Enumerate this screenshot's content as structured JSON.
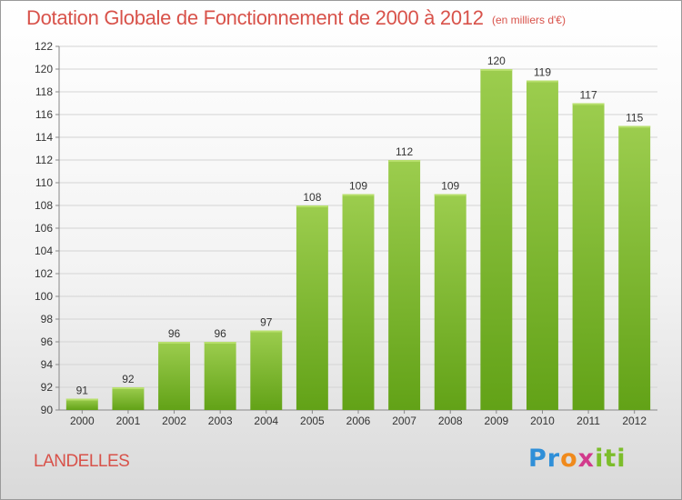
{
  "title": "Dotation Globale de Fonctionnement de 2000 à 2012",
  "subtitle": "(en milliers d'€)",
  "commune": "LANDELLES",
  "logo": {
    "part1": "Pr",
    "part2": "o",
    "part3": "x",
    "part4": "iti"
  },
  "colors": {
    "bar_top": "#9ccd4e",
    "bar_bottom": "#62a217",
    "title": "#d8524a",
    "grid": "#d4d4d4"
  },
  "chart_data": {
    "type": "bar",
    "categories": [
      "2000",
      "2001",
      "2002",
      "2003",
      "2004",
      "2005",
      "2006",
      "2007",
      "2008",
      "2009",
      "2010",
      "2011",
      "2012"
    ],
    "values": [
      91,
      92,
      96,
      96,
      97,
      108,
      109,
      112,
      109,
      120,
      119,
      117,
      115
    ],
    "title": "Dotation Globale de Fonctionnement de 2000 à 2012",
    "subtitle": "(en milliers d'€)",
    "xlabel": "",
    "ylabel": "",
    "ylim": [
      90,
      122
    ],
    "yticks": [
      90,
      92,
      94,
      96,
      98,
      100,
      102,
      104,
      106,
      108,
      110,
      112,
      114,
      116,
      118,
      120,
      122
    ],
    "grid": true,
    "legend": "none"
  }
}
